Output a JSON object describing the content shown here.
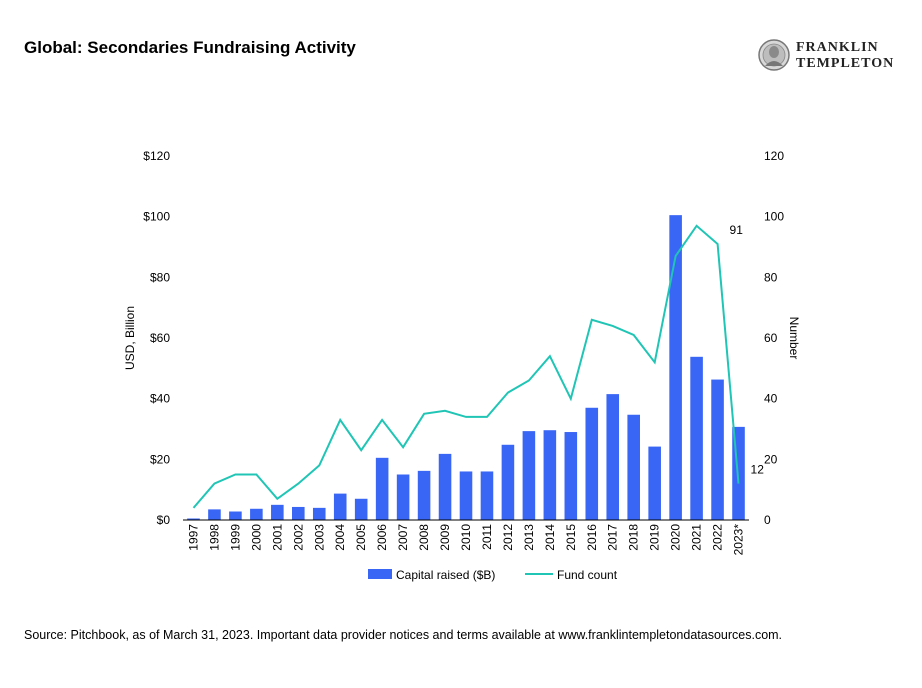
{
  "header": {
    "title": "Global: Secondaries Fundraising Activity",
    "logo_line1": "FRANKLIN",
    "logo_line2": "TEMPLETON"
  },
  "footer": {
    "source": "Source: Pitchbook, as of March 31, 2023. Important data provider notices and terms available at www.franklintempletondatasources.com."
  },
  "colors": {
    "bar": "#3A66F5",
    "line": "#20C5B5"
  },
  "chart_data": {
    "type": "bar",
    "title": "Global: Secondaries Fundraising Activity",
    "categories": [
      "1997",
      "1998",
      "1999",
      "2000",
      "2001",
      "2002",
      "2003",
      "2004",
      "2005",
      "2006",
      "2007",
      "2008",
      "2009",
      "2010",
      "2011",
      "2012",
      "2013",
      "2014",
      "2015",
      "2016",
      "2017",
      "2018",
      "2019",
      "2020",
      "2021",
      "2022",
      "2023*"
    ],
    "series": [
      {
        "name": "Capital raised ($B)",
        "type": "bar",
        "axis": "left",
        "values": [
          0.5,
          3.5,
          2.8,
          3.7,
          5,
          4.3,
          4,
          8.7,
          7,
          20.5,
          15,
          16.2,
          21.8,
          16,
          16,
          24.8,
          29.3,
          29.6,
          29,
          37,
          41.5,
          34.7,
          24.2,
          100.5,
          53.8,
          46.3,
          30.7
        ]
      },
      {
        "name": "Fund count",
        "type": "line",
        "axis": "right",
        "values": [
          4,
          12,
          15,
          15,
          7,
          12,
          18,
          33,
          23,
          33,
          24,
          35,
          36,
          34,
          34,
          42,
          46,
          54,
          40,
          66,
          64,
          61,
          52,
          87,
          97,
          91,
          12
        ]
      }
    ],
    "y_left": {
      "label": "USD, Billion",
      "ticks": [
        "$0",
        "$20",
        "$40",
        "$60",
        "$80",
        "$100",
        "$120"
      ],
      "range": [
        0,
        120
      ]
    },
    "y_right": {
      "label": "Number",
      "ticks": [
        "0",
        "20",
        "40",
        "60",
        "80",
        "100",
        "120"
      ],
      "range": [
        0,
        120
      ]
    },
    "annotations": [
      {
        "category": "2022",
        "text": "91"
      },
      {
        "category": "2023*",
        "text": "12"
      }
    ],
    "legend": {
      "position": "bottom",
      "items": [
        "Capital raised ($B)",
        "Fund count"
      ]
    },
    "grid": false
  }
}
